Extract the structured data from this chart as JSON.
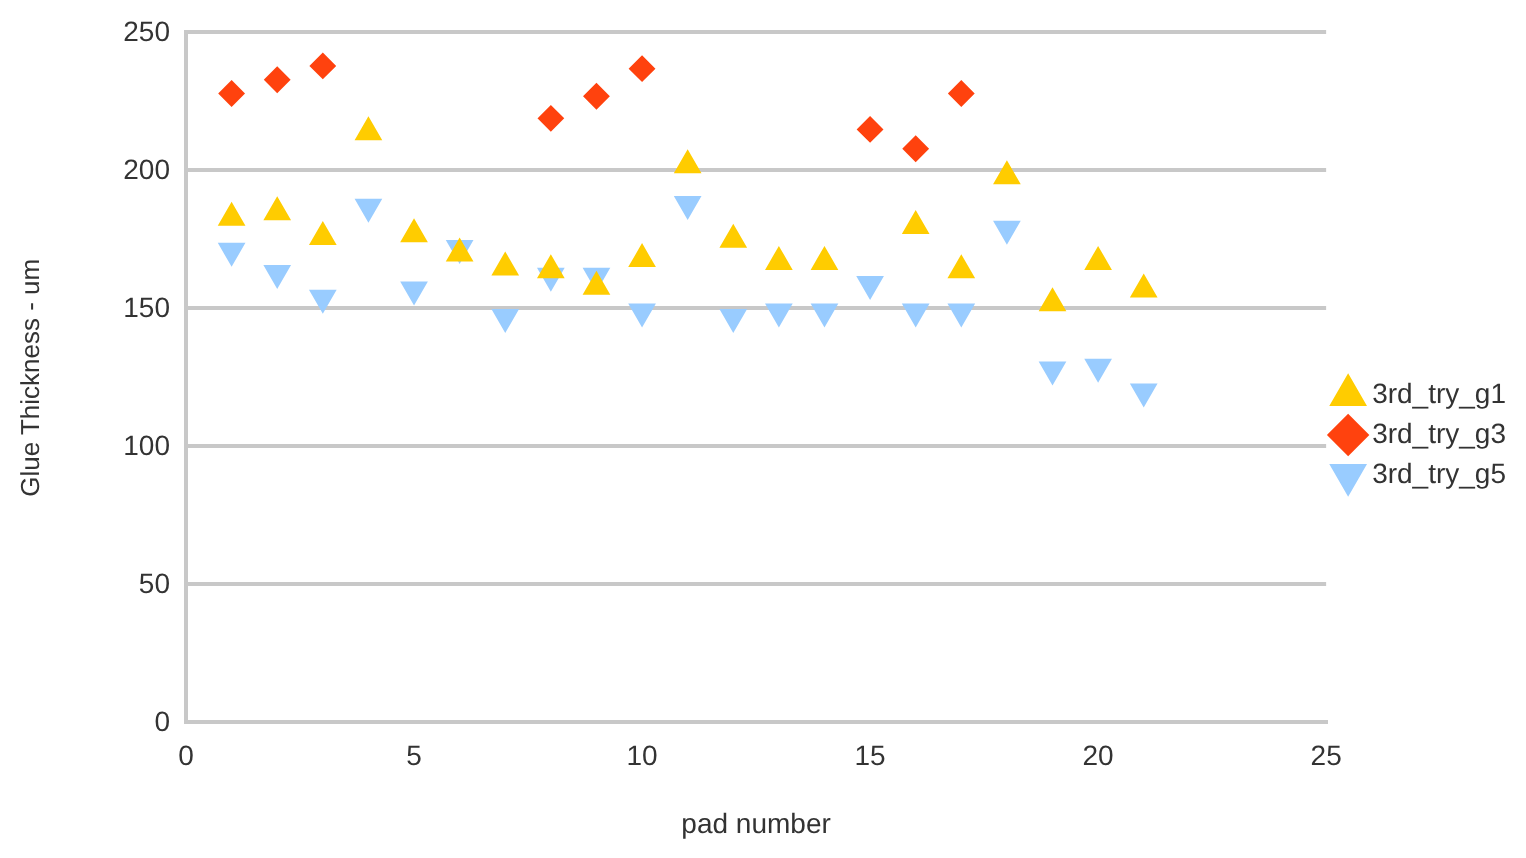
{
  "chart_data": {
    "type": "scatter",
    "xlabel": "pad number",
    "ylabel": "Glue Thickness - um",
    "x": [
      1,
      2,
      3,
      4,
      5,
      6,
      7,
      8,
      9,
      10,
      11,
      12,
      13,
      14,
      15,
      16,
      17,
      18,
      19,
      20,
      21
    ],
    "series": [
      {
        "name": "3rd_try_g1",
        "color": "#ffcc00",
        "marker": "triangle",
        "values": [
          183,
          185,
          176,
          214,
          177,
          170,
          165,
          164,
          158,
          168,
          202,
          175,
          167,
          167,
          null,
          180,
          164,
          198,
          152,
          167,
          157
        ]
      },
      {
        "name": "3rd_try_g3",
        "color": "#ff420e",
        "marker": "diamond",
        "values": [
          228,
          233,
          238,
          null,
          null,
          null,
          null,
          219,
          227,
          237,
          null,
          null,
          null,
          null,
          215,
          208,
          228,
          null,
          null,
          null,
          null
        ]
      },
      {
        "name": "3rd_try_g5",
        "color": "#99ccff",
        "marker": "triangle-down",
        "values": [
          171,
          163,
          154,
          187,
          157,
          172,
          147,
          162,
          162,
          149,
          188,
          147,
          149,
          149,
          159,
          149,
          149,
          179,
          128,
          129,
          120
        ]
      }
    ],
    "xlim": [
      0,
      25
    ],
    "xticks": [
      0,
      5,
      10,
      15,
      20,
      25
    ],
    "ylim": [
      0,
      250
    ],
    "yticks": [
      0,
      50,
      100,
      150,
      200,
      250
    ],
    "grid": "y",
    "legend": "right"
  }
}
